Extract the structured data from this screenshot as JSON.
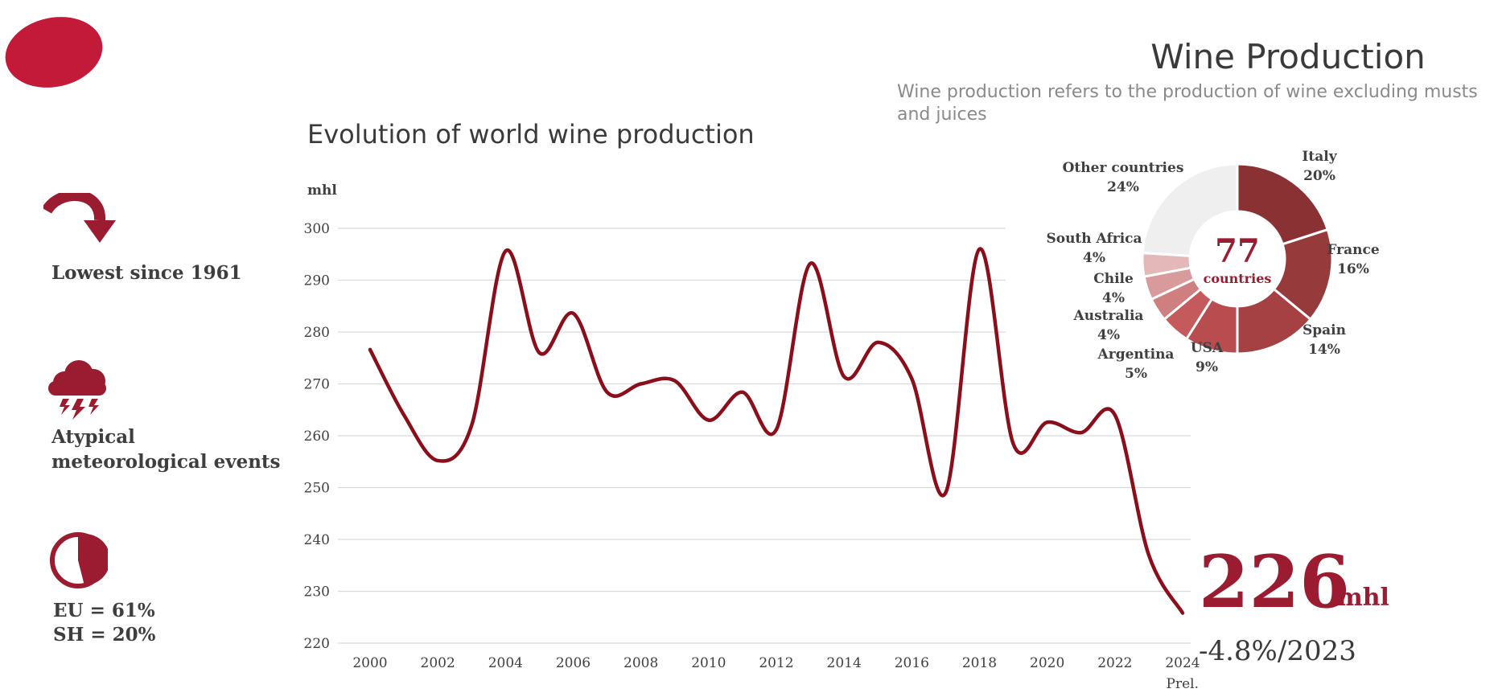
{
  "header": {
    "title": "Wine Production",
    "subtitle": "Wine production refers to the production of wine excluding musts and juices"
  },
  "sidebar": {
    "items": [
      {
        "icon": "curved-arrow-down-icon",
        "label": "Lowest since 1961"
      },
      {
        "icon": "storm-cloud-icon",
        "label": "Atypical meteorological events"
      },
      {
        "icon": "pie-share-icon",
        "label_lines": [
          "EU = 61%",
          "SH = 20%"
        ]
      }
    ]
  },
  "headline": {
    "value": "226",
    "unit": "mhl",
    "change": "-4.8%/2023"
  },
  "colors": {
    "accent": "#9b1b30",
    "line": "#8b0f1b",
    "logo": "#c41a3a",
    "grid": "#d9d9d9"
  },
  "chart_data": [
    {
      "type": "line",
      "title": "Evolution of world wine production",
      "ylabel": "mhl",
      "ylim": [
        220,
        300
      ],
      "yticks": [
        300,
        290,
        280,
        270,
        260,
        250,
        240,
        230,
        220
      ],
      "xticks": [
        "2000",
        "2002",
        "2004",
        "2006",
        "2008",
        "2010",
        "2012",
        "2014",
        "2016",
        "2018",
        "2020",
        "2022",
        "2024"
      ],
      "x_note": "Prel.",
      "grid": true,
      "series": [
        {
          "x": [
            2000,
            2001,
            2002,
            2003,
            2004,
            2005,
            2006,
            2007,
            2008,
            2009,
            2010,
            2011,
            2012,
            2013,
            2014,
            2015,
            2016,
            2017,
            2018,
            2019,
            2020,
            2021,
            2022,
            2023,
            2024
          ],
          "values": [
            276.6,
            264,
            255.2,
            262,
            295.6,
            276,
            283.6,
            268.4,
            270,
            270.6,
            263,
            268.4,
            261.2,
            293.2,
            271.4,
            278,
            271,
            249,
            296,
            258.4,
            262.6,
            260.6,
            264,
            237,
            225.8
          ]
        }
      ]
    },
    {
      "type": "pie",
      "center_value": "77",
      "center_label": "countries",
      "slices": [
        {
          "label": "Italy",
          "value": 20,
          "text": "20%",
          "color": "#8a3134"
        },
        {
          "label": "France",
          "value": 16,
          "text": "16%",
          "color": "#963a3c"
        },
        {
          "label": "Spain",
          "value": 14,
          "text": "14%",
          "color": "#a64143"
        },
        {
          "label": "USA",
          "value": 9,
          "text": "9%",
          "color": "#b84c4e"
        },
        {
          "label": "Argentina",
          "value": 5,
          "text": "5%",
          "color": "#c45a5c"
        },
        {
          "label": "Australia",
          "value": 4,
          "text": "4%",
          "color": "#cf7f80"
        },
        {
          "label": "Chile",
          "value": 4,
          "text": "4%",
          "color": "#d99a9b"
        },
        {
          "label": "South Africa",
          "value": 4,
          "text": "4%",
          "color": "#e4b7b8"
        },
        {
          "label": "Other countries",
          "value": 24,
          "text": "24%",
          "color": "#efefef"
        }
      ]
    }
  ]
}
